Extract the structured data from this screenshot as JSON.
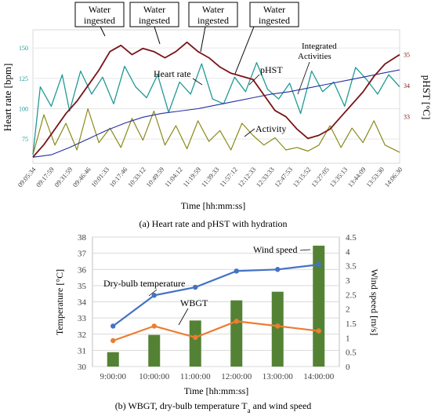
{
  "chart_data": [
    {
      "type": "line",
      "caption": "(a) Heart rate and pHST with hydration",
      "xlabel": "Time   [hh:mm:ss]",
      "ylabel_left": "Heart rate  [bpm]",
      "ylabel_right": "pHST  [°C]",
      "yticks_left": [
        "75",
        "100",
        "125",
        "150"
      ],
      "yticks_right": [
        "33",
        "34",
        "35"
      ],
      "x_ticks": [
        "09:05:34",
        "09:17:59",
        "09:31:59",
        "09:46:46",
        "10:01:33",
        "10:17:46",
        "10:33:12",
        "10:49:59",
        "11:04:12",
        "11:19:59",
        "11:39:33",
        "11:57:12",
        "12:12:33",
        "12:33:33",
        "12:47:53",
        "13:15:52",
        "13:27:05",
        "13:35:13",
        "13:44:09",
        "13:53:30",
        "14:06:30"
      ],
      "series_labels": {
        "heart_rate": "Heart rate",
        "phst": "pHST",
        "integrated": "Integrated Activities",
        "activity": "Activity"
      },
      "callouts": [
        "Water ingested",
        "Water ingested",
        "Water ingested",
        "Water ingested"
      ],
      "colors": {
        "heart_rate": "#1f9a96",
        "phst": "#7a1418",
        "integrated": "#2330a0",
        "activity": "#8a8a1a"
      },
      "series": [
        {
          "name": "Heart rate",
          "y_axis": "left",
          "x": [
            0,
            0.02,
            0.05,
            0.08,
            0.1,
            0.13,
            0.16,
            0.19,
            0.22,
            0.25,
            0.28,
            0.31,
            0.34,
            0.37,
            0.4,
            0.43,
            0.46,
            0.49,
            0.52,
            0.55,
            0.58,
            0.61,
            0.64,
            0.67,
            0.7,
            0.73,
            0.76,
            0.79,
            0.82,
            0.85,
            0.88,
            0.91,
            0.94,
            0.97,
            1.0
          ],
          "values": [
            62,
            118,
            102,
            128,
            98,
            131,
            112,
            126,
            104,
            135,
            118,
            109,
            128,
            97,
            122,
            112,
            137,
            108,
            104,
            126,
            114,
            138,
            116,
            108,
            121,
            96,
            131,
            114,
            122,
            102,
            134,
            124,
            112,
            128,
            118
          ]
        },
        {
          "name": "pHST",
          "y_axis": "right",
          "x": [
            0,
            0.03,
            0.06,
            0.09,
            0.12,
            0.15,
            0.18,
            0.21,
            0.24,
            0.27,
            0.3,
            0.33,
            0.36,
            0.39,
            0.42,
            0.45,
            0.48,
            0.51,
            0.54,
            0.57,
            0.6,
            0.63,
            0.66,
            0.69,
            0.72,
            0.75,
            0.78,
            0.81,
            0.84,
            0.87,
            0.9,
            0.93,
            0.96,
            1.0
          ],
          "values": [
            31.7,
            32.1,
            32.6,
            33.1,
            33.5,
            34.0,
            34.5,
            35.1,
            35.3,
            35.0,
            35.2,
            35.1,
            34.9,
            35.1,
            35.4,
            35.1,
            34.9,
            34.6,
            34.4,
            34.3,
            34.2,
            33.7,
            33.2,
            33.0,
            32.6,
            32.3,
            32.4,
            32.6,
            33.0,
            33.4,
            33.8,
            34.3,
            34.7,
            35.0
          ]
        },
        {
          "name": "Integrated Activities",
          "y_axis": "left",
          "x": [
            0,
            0.05,
            0.1,
            0.15,
            0.2,
            0.25,
            0.3,
            0.35,
            0.4,
            0.45,
            0.5,
            0.55,
            0.6,
            0.65,
            0.7,
            0.75,
            0.8,
            0.85,
            0.9,
            0.95,
            1.0
          ],
          "values": [
            60,
            62,
            68,
            75,
            82,
            88,
            93,
            96,
            98,
            100,
            103,
            106,
            109,
            112,
            114,
            117,
            120,
            123,
            126,
            129,
            132
          ]
        },
        {
          "name": "Activity",
          "y_axis": "left",
          "x": [
            0,
            0.03,
            0.06,
            0.09,
            0.12,
            0.15,
            0.18,
            0.21,
            0.24,
            0.27,
            0.3,
            0.33,
            0.36,
            0.39,
            0.42,
            0.45,
            0.48,
            0.51,
            0.54,
            0.57,
            0.6,
            0.63,
            0.66,
            0.69,
            0.72,
            0.75,
            0.78,
            0.81,
            0.84,
            0.87,
            0.9,
            0.93,
            0.96,
            1.0
          ],
          "values": [
            62,
            95,
            70,
            88,
            66,
            100,
            72,
            84,
            68,
            92,
            74,
            98,
            70,
            86,
            67,
            90,
            73,
            82,
            66,
            88,
            78,
            70,
            76,
            66,
            68,
            65,
            70,
            86,
            68,
            84,
            72,
            90,
            70,
            64
          ]
        }
      ]
    },
    {
      "type": "bar",
      "caption": "(b) WBGT, dry-bulb temperature T",
      "caption_sub": "a",
      "caption_tail": " and wind speed",
      "categories": [
        "9:00:00",
        "10:00:00",
        "11:00:00",
        "12:00:00",
        "13:00:00",
        "14:00:00"
      ],
      "xlabel": "Time [hh:mm:ss]",
      "ylabel_left": "Temperature [°C]",
      "ylabel_right": "Wind speed [m/s]",
      "ylim_left": [
        30,
        38
      ],
      "ylim_right": [
        0,
        4.5
      ],
      "yticks_left": [
        "30",
        "31",
        "32",
        "33",
        "34",
        "35",
        "36",
        "37",
        "38"
      ],
      "yticks_right": [
        "0",
        "0.5",
        "1",
        "1.5",
        "2",
        "2.5",
        "3",
        "3.5",
        "4",
        "4.5"
      ],
      "labels": {
        "wind": "Wind speed",
        "dry_bulb": "Dry-bulb temperature",
        "wbgt": "WBGT"
      },
      "colors": {
        "wind": "#548235",
        "dry_bulb": "#4472c4",
        "wbgt": "#ed7d31"
      },
      "series": [
        {
          "name": "Wind speed",
          "axis": "right",
          "kind": "bar",
          "values": [
            0.5,
            1.1,
            1.6,
            2.3,
            2.6,
            4.2
          ]
        },
        {
          "name": "Dry-bulb temperature",
          "axis": "left",
          "kind": "line",
          "values": [
            32.5,
            34.4,
            34.9,
            35.9,
            36.0,
            36.3
          ]
        },
        {
          "name": "WBGT",
          "axis": "left",
          "kind": "line",
          "values": [
            31.6,
            32.5,
            31.8,
            32.8,
            32.5,
            32.2
          ]
        }
      ]
    }
  ]
}
